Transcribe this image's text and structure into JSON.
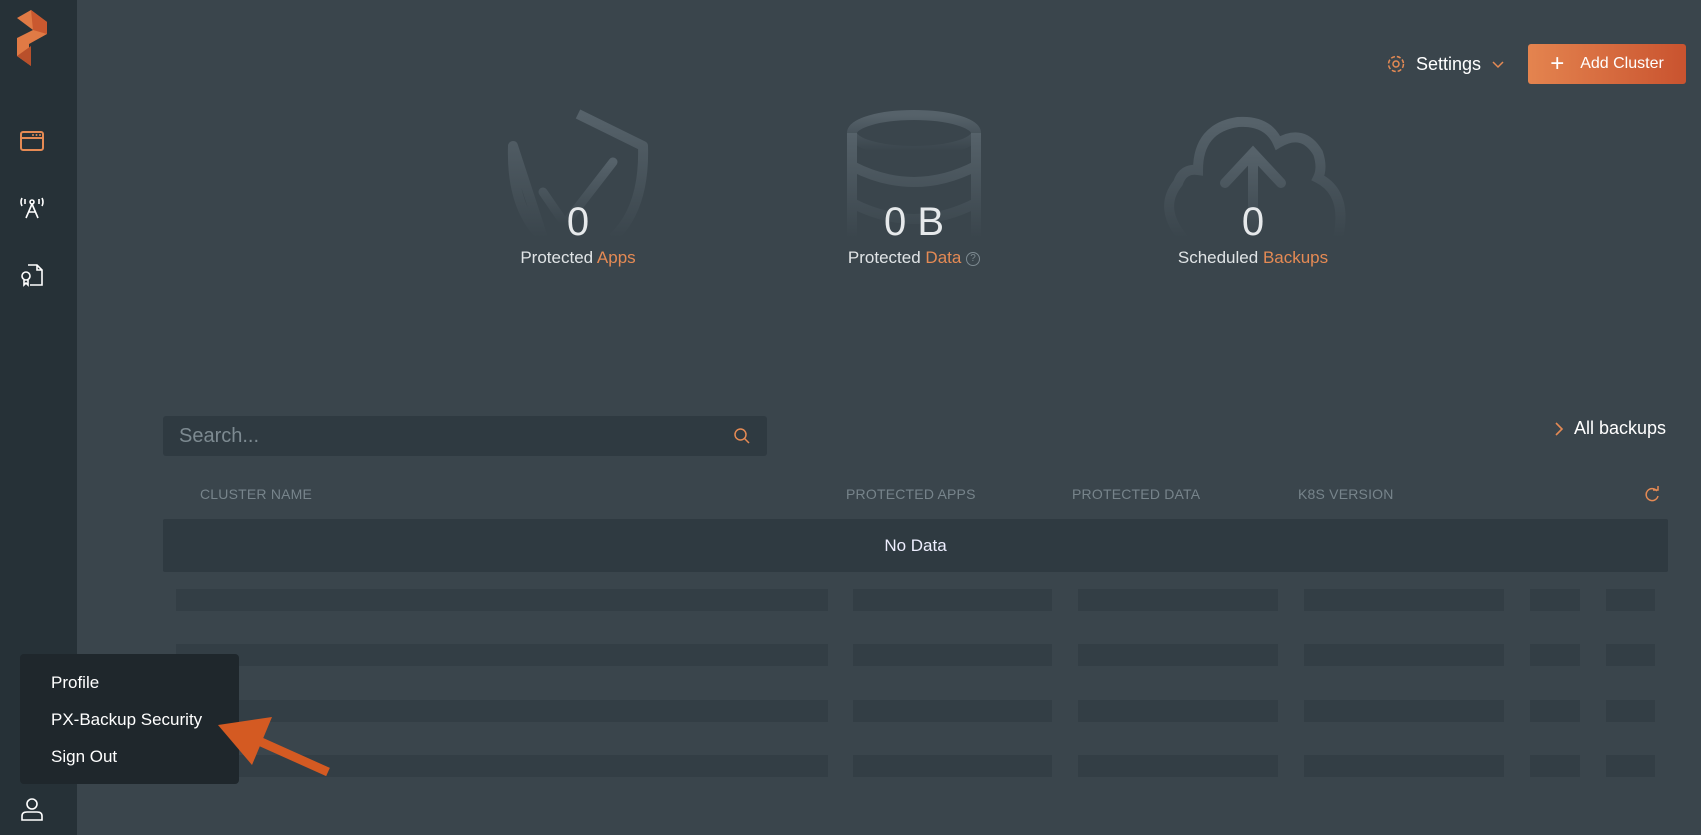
{
  "header": {
    "settings_label": "Settings",
    "add_cluster_label": "Add Cluster"
  },
  "stats": [
    {
      "value": "0",
      "label": "Protected ",
      "accent": "Apps"
    },
    {
      "value": "0 B",
      "label": "Protected ",
      "accent": "Data"
    },
    {
      "value": "0",
      "label": "Scheduled ",
      "accent": "Backups"
    }
  ],
  "search": {
    "placeholder": "Search...",
    "value": ""
  },
  "all_backups_label": "All backups",
  "table": {
    "columns": [
      "CLUSTER NAME",
      "PROTECTED APPS",
      "PROTECTED DATA",
      "K8S VERSION"
    ],
    "empty_text": "No Data"
  },
  "user_menu": {
    "items": [
      "Profile",
      "PX-Backup Security",
      "Sign Out"
    ]
  },
  "colors": {
    "accent": "#e58a54",
    "sidebar": "#263137",
    "background": "#3a454c",
    "annotation_arrow": "#d45a22"
  }
}
